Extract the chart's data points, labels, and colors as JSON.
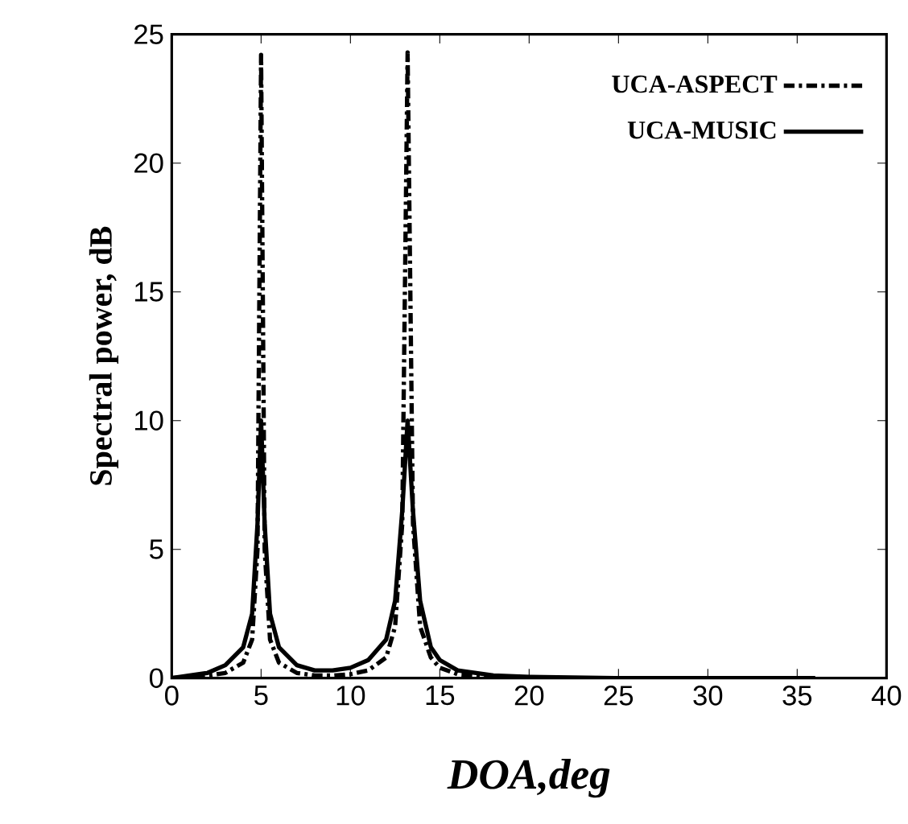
{
  "chart_data": {
    "type": "line",
    "xlabel": "*DOA,deg*",
    "ylabel": "Spectral power, dB",
    "xlim": [
      0,
      40
    ],
    "ylim": [
      0,
      25
    ],
    "xticks": [
      0,
      5,
      10,
      15,
      20,
      25,
      30,
      35,
      40
    ],
    "yticks": [
      0,
      5,
      10,
      15,
      20,
      25
    ],
    "grid": false,
    "legend": "top right",
    "marker": "none",
    "series": [
      {
        "name": "UCA-ASPECT",
        "color": "#000000",
        "line_style": "dashed",
        "x": [
          0,
          1,
          2,
          3,
          4,
          4.5,
          4.8,
          5,
          5.2,
          5.5,
          6,
          7,
          8,
          9,
          10,
          11,
          12,
          12.5,
          12.9,
          13.2,
          13.5,
          13.9,
          14.5,
          15,
          16,
          18,
          20,
          25,
          30,
          36
        ],
        "values": [
          0,
          0.05,
          0.1,
          0.2,
          0.6,
          1.5,
          5,
          24.2,
          5,
          1.5,
          0.6,
          0.2,
          0.1,
          0.1,
          0.15,
          0.3,
          0.8,
          2,
          6,
          24.3,
          6,
          2,
          0.8,
          0.4,
          0.15,
          0.05,
          0,
          0,
          0,
          0
        ]
      },
      {
        "name": "UCA-MUSIC",
        "color": "#000000",
        "line_style": "solid",
        "x": [
          0,
          1,
          2,
          3,
          4,
          4.5,
          4.8,
          5,
          5.2,
          5.5,
          6,
          7,
          8,
          9,
          10,
          11,
          12,
          12.5,
          12.9,
          13.2,
          13.5,
          13.9,
          14.5,
          15,
          16,
          18,
          20,
          25,
          30,
          36
        ],
        "values": [
          0,
          0.1,
          0.2,
          0.5,
          1.2,
          2.5,
          6,
          10,
          6,
          2.5,
          1.2,
          0.5,
          0.3,
          0.3,
          0.4,
          0.7,
          1.5,
          3,
          6.5,
          10,
          6.5,
          3,
          1.2,
          0.7,
          0.3,
          0.1,
          0.05,
          0,
          0,
          0
        ]
      }
    ]
  }
}
